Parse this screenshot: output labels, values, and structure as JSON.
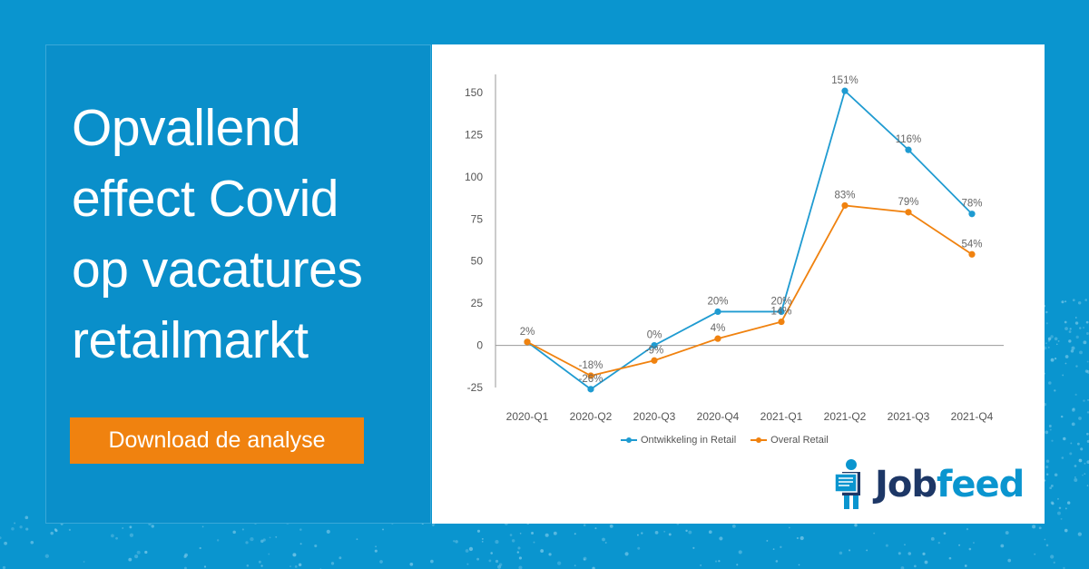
{
  "headline": [
    "Opvallend",
    "effect Covid",
    "op vacatures",
    "retailmarkt"
  ],
  "cta": {
    "label": "Download de analyse"
  },
  "colors": {
    "background": "#0a95cf",
    "cta": "#f0820f",
    "series_retail_dev": "#1f9bd1",
    "series_overall": "#f0820f",
    "logo_dark": "#1d3766",
    "logo_blue": "#0a95cf"
  },
  "logo": {
    "part1": "Job",
    "part2": "feed",
    "icon": "person-newspaper-icon"
  },
  "chart_data": {
    "type": "line",
    "categories": [
      "2020-Q1",
      "2020-Q2",
      "2020-Q3",
      "2020-Q4",
      "2021-Q1",
      "2021-Q2",
      "2021-Q3",
      "2021-Q4"
    ],
    "yticks": [
      150,
      125,
      100,
      75,
      50,
      25,
      0,
      -25
    ],
    "ylim": [
      -25,
      150
    ],
    "grid": false,
    "legend_position": "bottom",
    "series": [
      {
        "name": "Ontwikkeling in Retail",
        "color": "#1f9bd1",
        "values": [
          2,
          -26,
          0,
          20,
          20,
          151,
          116,
          78
        ],
        "labels": [
          "2%",
          "-26%",
          "0%",
          "20%",
          "20%",
          "151%",
          "116%",
          "78%"
        ]
      },
      {
        "name": "Overal Retail",
        "color": "#f0820f",
        "values": [
          2,
          -18,
          -9,
          4,
          14,
          83,
          79,
          54
        ],
        "labels": [
          "",
          "-18%",
          "-9%",
          "4%",
          "14%",
          "83%",
          "79%",
          "54%"
        ]
      }
    ]
  }
}
